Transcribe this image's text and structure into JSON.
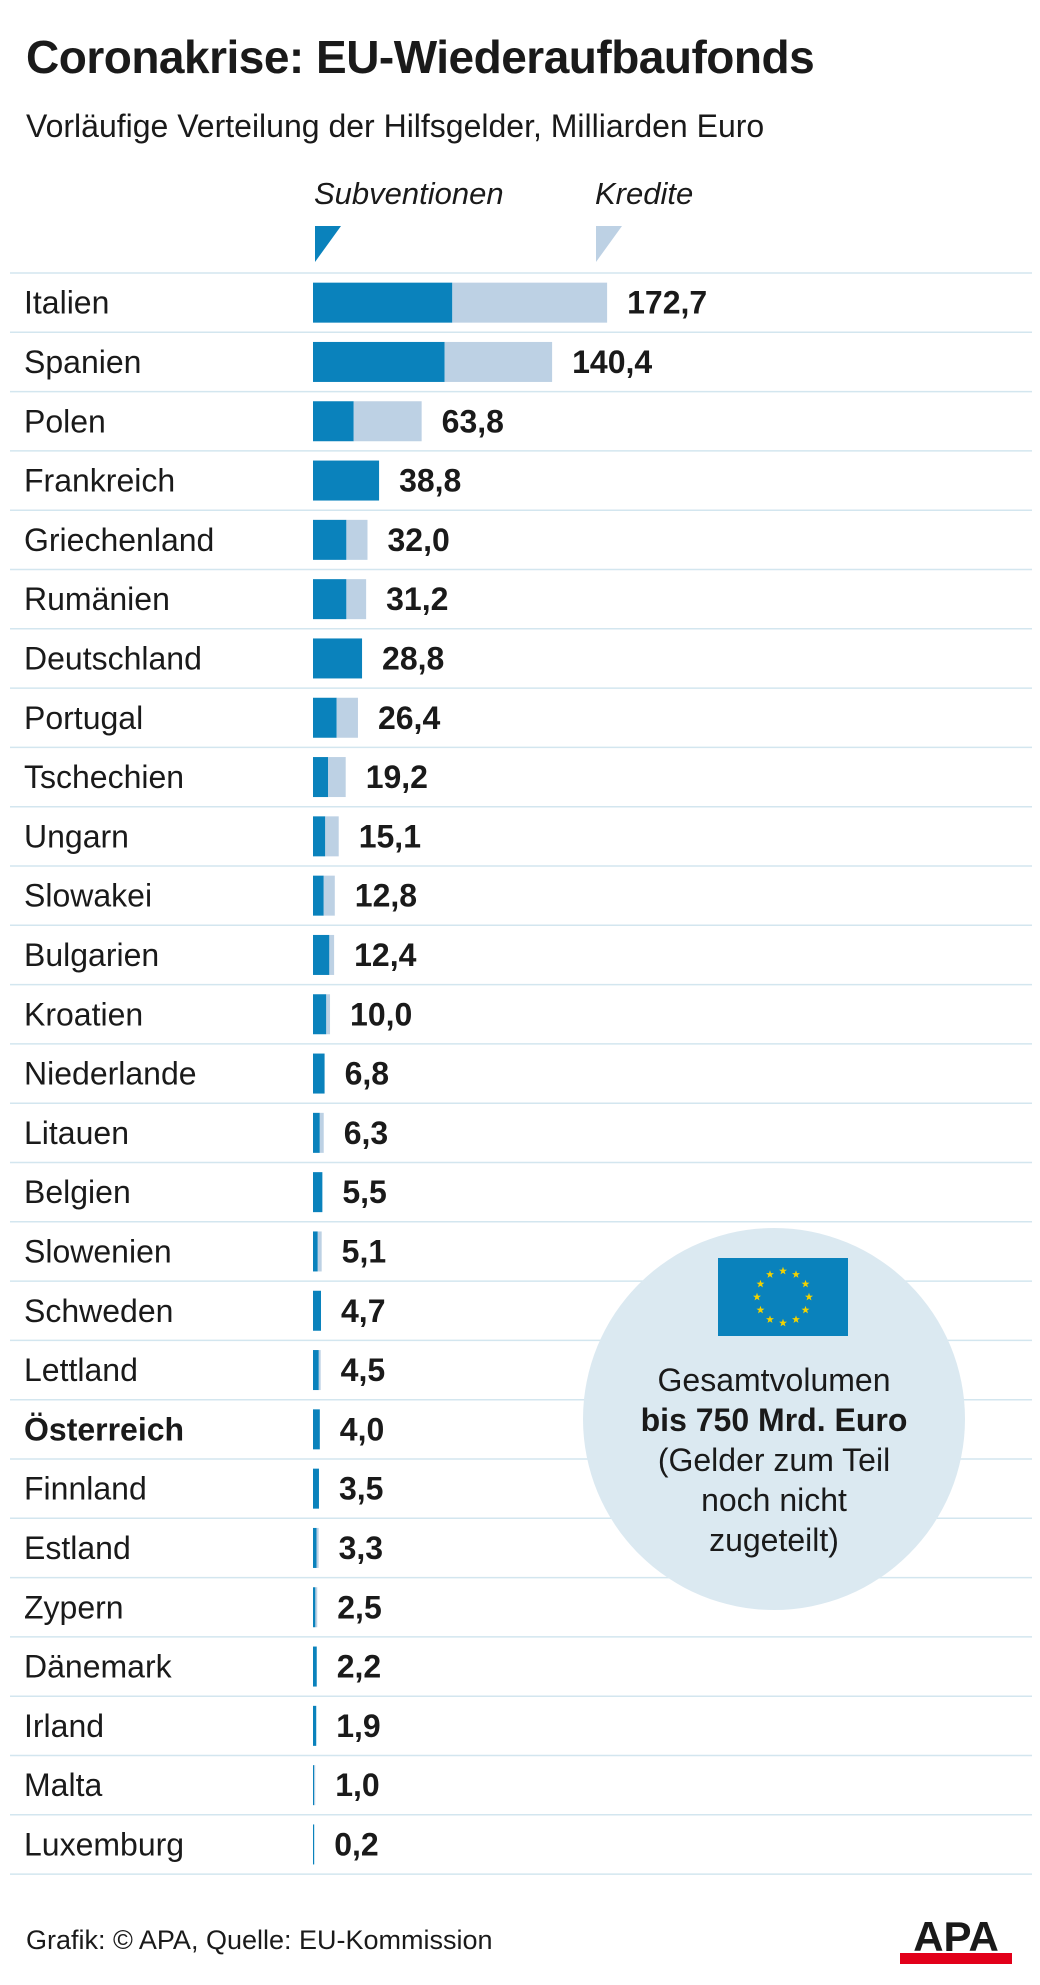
{
  "title": "Coronakrise: EU-Wiederaufbaufonds",
  "subtitle": "Vorläufige Verteilung der Hilfsgelder, Milliarden Euro",
  "colors": {
    "subventionen": "#0a82bc",
    "kredite": "#bdd1e4",
    "grid": "#d3e6ef",
    "info_circle": "#dbe9f1",
    "eu_flag_blue": "#0a82bc",
    "eu_flag_stars": "#f2d200",
    "apa_red": "#e2001a"
  },
  "info": {
    "line1": "Gesamtvolumen",
    "line2": "bis 750 Mrd. Euro",
    "line3": "(Gelder zum Teil",
    "line4": "noch nicht",
    "line5": "zugeteilt)",
    "flag_icon": "eu-flag-icon"
  },
  "footer": "Grafik: © APA, Quelle: EU-Kommission",
  "logo": "APA",
  "chart_data": {
    "type": "bar",
    "orientation": "horizontal",
    "stacked": true,
    "legend": [
      "Subventionen",
      "Kredite"
    ],
    "legend_position": "top",
    "unit": "Milliarden Euro",
    "bold_category": "Österreich",
    "categories": [
      "Italien",
      "Spanien",
      "Polen",
      "Frankreich",
      "Griechenland",
      "Rumänien",
      "Deutschland",
      "Portugal",
      "Tschechien",
      "Ungarn",
      "Slowakei",
      "Bulgarien",
      "Kroatien",
      "Niederlande",
      "Litauen",
      "Belgien",
      "Slowenien",
      "Schweden",
      "Lettland",
      "Österreich",
      "Finnland",
      "Estland",
      "Zypern",
      "Dänemark",
      "Irland",
      "Malta",
      "Luxemburg"
    ],
    "series": [
      {
        "name": "Subventionen",
        "values": [
          81.8,
          77.3,
          23.9,
          38.8,
          19.6,
          19.6,
          28.8,
          13.9,
          8.9,
          7.2,
          6.3,
          9.6,
          7.8,
          6.8,
          4.0,
          5.5,
          2.8,
          4.7,
          3.4,
          4.0,
          3.5,
          2.1,
          1.4,
          2.2,
          1.9,
          0.4,
          0.2
        ]
      },
      {
        "name": "Kredite",
        "values": [
          90.9,
          63.1,
          39.9,
          0.0,
          12.4,
          11.6,
          0.0,
          12.5,
          10.3,
          7.9,
          6.5,
          2.8,
          2.2,
          0.0,
          2.3,
          0.0,
          2.3,
          0.0,
          1.1,
          0.0,
          0.0,
          1.2,
          1.1,
          0.0,
          0.0,
          0.6,
          0.0
        ]
      }
    ],
    "totals": [
      "172,7",
      "140,4",
      "63,8",
      "38,8",
      "32,0",
      "31,2",
      "28,8",
      "26,4",
      "19,2",
      "15,1",
      "12,8",
      "12,4",
      "10,0",
      "6,8",
      "6,3",
      "5,5",
      "5,1",
      "4,7",
      "4,5",
      "4,0",
      "3,5",
      "3,3",
      "2,5",
      "2,2",
      "1,9",
      "1,0",
      "0,2"
    ],
    "xlim": [
      0,
      180
    ]
  }
}
